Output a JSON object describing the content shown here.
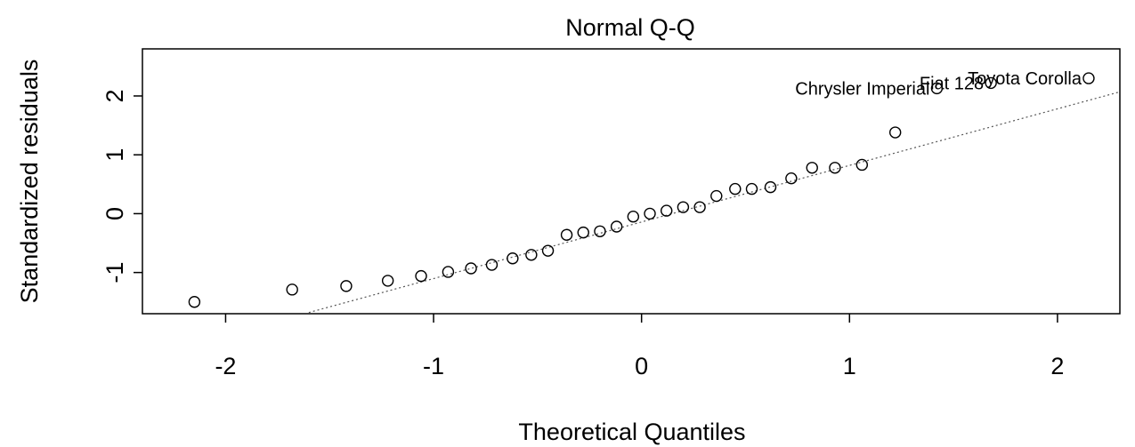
{
  "chart_data": {
    "type": "scatter",
    "title": "Normal Q-Q",
    "xlabel": "Theoretical Quantiles",
    "ylabel": "Standardized residuals",
    "xlim": [
      -2.4,
      2.3
    ],
    "ylim": [
      -1.7,
      2.8
    ],
    "grid": false,
    "xticks": [
      {
        "value": -2,
        "label": "-2"
      },
      {
        "value": -1,
        "label": "-1"
      },
      {
        "value": 0,
        "label": "0"
      },
      {
        "value": 1,
        "label": "1"
      },
      {
        "value": 2,
        "label": "2"
      }
    ],
    "yticks": [
      {
        "value": -1,
        "label": "-1"
      },
      {
        "value": 0,
        "label": "0"
      },
      {
        "value": 1,
        "label": "1"
      },
      {
        "value": 2,
        "label": "2"
      }
    ],
    "reference_line": {
      "style": "dotted",
      "from": [
        -1.6,
        -1.68
      ],
      "to": [
        2.3,
        2.07
      ]
    },
    "points": [
      {
        "x": -2.15,
        "y": -1.5
      },
      {
        "x": -1.68,
        "y": -1.29
      },
      {
        "x": -1.42,
        "y": -1.23
      },
      {
        "x": -1.22,
        "y": -1.14
      },
      {
        "x": -1.06,
        "y": -1.06
      },
      {
        "x": -0.93,
        "y": -0.99
      },
      {
        "x": -0.82,
        "y": -0.93
      },
      {
        "x": -0.72,
        "y": -0.87
      },
      {
        "x": -0.62,
        "y": -0.76
      },
      {
        "x": -0.53,
        "y": -0.7
      },
      {
        "x": -0.45,
        "y": -0.63
      },
      {
        "x": -0.36,
        "y": -0.36
      },
      {
        "x": -0.28,
        "y": -0.32
      },
      {
        "x": -0.2,
        "y": -0.3
      },
      {
        "x": -0.12,
        "y": -0.22
      },
      {
        "x": -0.04,
        "y": -0.05
      },
      {
        "x": 0.04,
        "y": 0.0
      },
      {
        "x": 0.12,
        "y": 0.05
      },
      {
        "x": 0.2,
        "y": 0.11
      },
      {
        "x": 0.28,
        "y": 0.11
      },
      {
        "x": 0.36,
        "y": 0.3
      },
      {
        "x": 0.45,
        "y": 0.42
      },
      {
        "x": 0.53,
        "y": 0.42
      },
      {
        "x": 0.62,
        "y": 0.45
      },
      {
        "x": 0.72,
        "y": 0.6
      },
      {
        "x": 0.82,
        "y": 0.78
      },
      {
        "x": 0.93,
        "y": 0.78
      },
      {
        "x": 1.06,
        "y": 0.83
      },
      {
        "x": 1.22,
        "y": 1.38
      },
      {
        "x": 1.42,
        "y": 2.13,
        "label": "Chrysler Imperial"
      },
      {
        "x": 1.68,
        "y": 2.22,
        "label": "Fiat 128"
      },
      {
        "x": 2.15,
        "y": 2.3,
        "label": "Toyota Corolla"
      }
    ]
  }
}
